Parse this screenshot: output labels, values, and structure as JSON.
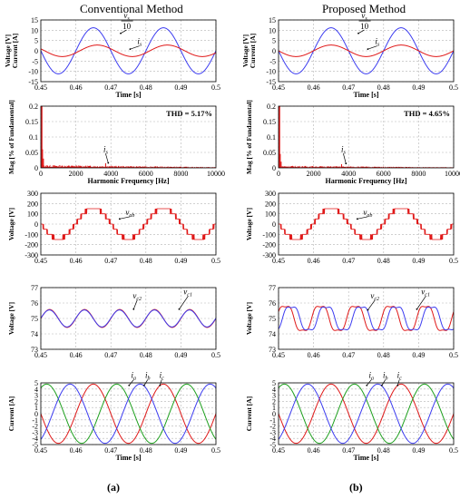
{
  "figure": {
    "columns": [
      {
        "title": "Conventional Method",
        "tag": "(a)"
      },
      {
        "title": "Proposed Method",
        "tag": "(b)"
      }
    ]
  },
  "colors": {
    "blue": "#3c3cf0",
    "red": "#e01818",
    "grid": "#b4b4b4"
  },
  "chart_data": [
    {
      "id": "a1",
      "type": "line",
      "column": 0,
      "row": 0,
      "ylabel": "Voltage [V]\nCurrent [A]",
      "xlabel": "Time [s]",
      "xlim": [
        0.45,
        0.5
      ],
      "ylim": [
        -15,
        15
      ],
      "xticks": [
        0.45,
        0.46,
        0.47,
        0.48,
        0.49,
        0.5
      ],
      "yticks": [
        -15,
        -10,
        -5,
        0,
        5,
        10,
        15
      ],
      "series": [
        {
          "color": "blue",
          "kind": "sine",
          "amplitude": 11.2,
          "frequency": 50,
          "phase_deg": 0
        },
        {
          "color": "red",
          "kind": "sine",
          "amplitude": 2.8,
          "frequency": 50,
          "phase_deg": -20
        }
      ],
      "annotations": [
        {
          "text_num": "v",
          "sub_num": "s",
          "text_den": "10",
          "kind": "fraction",
          "x": 0.4745,
          "y": 11.0,
          "ax": 0.4728,
          "ay": 8.5
        },
        {
          "text": "i",
          "sub": "s",
          "x": 0.4782,
          "y": 3.3,
          "ax": 0.4755,
          "ay": 0.8
        }
      ]
    },
    {
      "id": "a2",
      "type": "bar",
      "column": 0,
      "row": 1,
      "ylabel": "Mag [% of Fundamental]",
      "xlabel": "Harmonic Frequency [Hz]",
      "xlim": [
        0,
        10000
      ],
      "ylim": [
        0,
        0.2
      ],
      "xticks": [
        0,
        2000,
        4000,
        6000,
        8000,
        10000
      ],
      "yticks": [
        0,
        0.05,
        0.1,
        0.15,
        0.2
      ],
      "xtick_labels": [
        "0",
        "2000",
        "4000",
        "6000",
        "8000",
        "10000"
      ],
      "ytick_labels": [
        "0",
        "0.05",
        "0.1",
        "0.15",
        "0.2"
      ],
      "thd_label": "THD = 5.17%",
      "spectrum": {
        "fundamental": 0.2,
        "noise": 0.008,
        "peaks": [
          [
            100,
            0.06
          ],
          [
            150,
            0.03
          ],
          [
            3700,
            0.015
          ]
        ]
      },
      "annotations": [
        {
          "text": "i",
          "sub": "s",
          "x": 3700,
          "y": 0.052,
          "ax": 3850,
          "ay": 0.016
        }
      ]
    },
    {
      "id": "a3",
      "type": "line",
      "column": 0,
      "row": 2,
      "ylabel": "Voltage [V]",
      "xlabel": "",
      "xlim": [
        0.45,
        0.5
      ],
      "ylim": [
        -300,
        300
      ],
      "xticks": [
        0.45,
        0.46,
        0.47,
        0.48,
        0.49,
        0.5
      ],
      "yticks": [
        -300,
        -200,
        -100,
        0,
        100,
        200,
        300
      ],
      "series": [
        {
          "color": "red",
          "kind": "multilevel",
          "amplitude": 150,
          "frequency": 50,
          "levels": 3
        }
      ],
      "annotations": [
        {
          "text": "v",
          "sub": "ab",
          "x": 0.4755,
          "y": 90,
          "ax": 0.4725,
          "ay": 50
        }
      ]
    },
    {
      "id": "a4",
      "type": "line",
      "column": 0,
      "row": 3,
      "ylabel": "Voltage [V]",
      "xlabel": "",
      "xlim": [
        0.45,
        0.5
      ],
      "ylim": [
        73,
        77
      ],
      "xticks": [
        0.45,
        0.46,
        0.47,
        0.48,
        0.49,
        0.5
      ],
      "yticks": [
        73,
        74,
        75,
        76,
        77
      ],
      "series": [
        {
          "color": "red",
          "kind": "sine",
          "offset": 75,
          "amplitude": 0.58,
          "frequency": 100,
          "phase_deg": 0
        },
        {
          "color": "blue",
          "kind": "sine",
          "offset": 75,
          "amplitude": 0.55,
          "frequency": 100,
          "phase_deg": 2
        }
      ],
      "annotations": [
        {
          "text": "v",
          "sub": "c2",
          "x": 0.4775,
          "y": 76.3,
          "ax": 0.4765,
          "ay": 75.6
        },
        {
          "text": "v",
          "sub": "c1",
          "x": 0.492,
          "y": 76.55,
          "ax": 0.4895,
          "ay": 75.6
        }
      ]
    },
    {
      "id": "a5",
      "type": "line",
      "column": 0,
      "row": 4,
      "ylabel": "Current [A]",
      "xlabel": "Time [s]",
      "xlim": [
        0.45,
        0.5
      ],
      "ylim": [
        -5,
        5
      ],
      "xticks": [
        0.45,
        0.46,
        0.47,
        0.48,
        0.49,
        0.5
      ],
      "yticks": [
        -5,
        -4,
        -3,
        -2,
        -1,
        0,
        1,
        2,
        3,
        4,
        5
      ],
      "series": [
        {
          "color": "red",
          "kind": "sine",
          "amplitude": 4.8,
          "frequency": 50,
          "phase_deg": 0
        },
        {
          "color": "green",
          "kind": "sine",
          "amplitude": 4.8,
          "frequency": 50,
          "phase_deg": -120
        },
        {
          "color": "blue",
          "kind": "sine",
          "amplitude": 4.8,
          "frequency": 50,
          "phase_deg": 120
        }
      ],
      "annotations": [
        {
          "text": "i",
          "sub": "a",
          "x": 0.4765,
          "y": 5.8,
          "ax": 0.4752,
          "ay": 4.6
        },
        {
          "text": "i",
          "sub": "b",
          "x": 0.4805,
          "y": 5.8,
          "ax": 0.4795,
          "ay": 4.6
        },
        {
          "text": "i",
          "sub": "c",
          "x": 0.4845,
          "y": 5.8,
          "ax": 0.484,
          "ay": 4.6
        }
      ]
    },
    {
      "id": "b1",
      "type": "line",
      "column": 1,
      "row": 0,
      "ylabel": "Voltage [V]\nCurrent [A]",
      "xlabel": "Time [s]",
      "xlim": [
        0.45,
        0.5
      ],
      "ylim": [
        -15,
        15
      ],
      "xticks": [
        0.45,
        0.46,
        0.47,
        0.48,
        0.49,
        0.5
      ],
      "yticks": [
        -15,
        -10,
        -5,
        0,
        5,
        10,
        15
      ],
      "series": [
        {
          "color": "blue",
          "kind": "sine",
          "amplitude": 11.2,
          "frequency": 50,
          "phase_deg": 0
        },
        {
          "color": "red",
          "kind": "sine",
          "amplitude": 2.8,
          "frequency": 50,
          "phase_deg": 0
        }
      ],
      "annotations": [
        {
          "text_num": "v",
          "sub_num": "s",
          "text_den": "10",
          "kind": "fraction",
          "x": 0.4745,
          "y": 11.0,
          "ax": 0.4728,
          "ay": 8.5
        },
        {
          "text": "i",
          "sub": "s",
          "x": 0.4782,
          "y": 3.3,
          "ax": 0.4755,
          "ay": 0.8
        }
      ]
    },
    {
      "id": "b2",
      "type": "bar",
      "column": 1,
      "row": 1,
      "ylabel": "Mag [% of Fundamental]",
      "xlabel": "Harmonic Frequency [Hz]",
      "xlim": [
        0,
        10000
      ],
      "ylim": [
        0,
        0.2
      ],
      "xticks": [
        0,
        2000,
        4000,
        6000,
        8000,
        10000
      ],
      "yticks": [
        0,
        0.05,
        0.1,
        0.15,
        0.2
      ],
      "xtick_labels": [
        "0",
        "2000",
        "4000",
        "6000",
        "8000",
        "10000"
      ],
      "ytick_labels": [
        "0",
        "0.05",
        "0.1",
        "0.15",
        "0.2"
      ],
      "thd_label": "THD = 4.65%",
      "spectrum": {
        "fundamental": 0.2,
        "noise": 0.006,
        "peaks": [
          [
            100,
            0.045
          ],
          [
            150,
            0.02
          ],
          [
            3600,
            0.012
          ]
        ]
      },
      "annotations": [
        {
          "text": "i",
          "sub": "s",
          "x": 3700,
          "y": 0.052,
          "ax": 3850,
          "ay": 0.014
        }
      ]
    },
    {
      "id": "b3",
      "type": "line",
      "column": 1,
      "row": 2,
      "ylabel": "Voltage [V]",
      "xlabel": "",
      "xlim": [
        0.45,
        0.5
      ],
      "ylim": [
        -300,
        300
      ],
      "xticks": [
        0.45,
        0.46,
        0.47,
        0.48,
        0.49,
        0.5
      ],
      "yticks": [
        -300,
        -200,
        -100,
        0,
        100,
        200,
        300
      ],
      "series": [
        {
          "color": "red",
          "kind": "multilevel",
          "amplitude": 150,
          "frequency": 50,
          "levels": 3
        }
      ],
      "annotations": [
        {
          "text": "v",
          "sub": "ab",
          "x": 0.4755,
          "y": 90,
          "ax": 0.4725,
          "ay": 50
        }
      ]
    },
    {
      "id": "b4",
      "type": "line",
      "column": 1,
      "row": 3,
      "ylabel": "Voltage [V]",
      "xlabel": "",
      "xlim": [
        0.45,
        0.5
      ],
      "ylim": [
        73,
        77
      ],
      "xticks": [
        0.45,
        0.46,
        0.47,
        0.48,
        0.49,
        0.5
      ],
      "yticks": [
        73,
        74,
        75,
        76,
        77
      ],
      "series": [
        {
          "color": "red",
          "kind": "sine",
          "offset": 75,
          "amplitude": 0.9,
          "frequency": 100,
          "phase_deg": 20,
          "harmonic": 0.15
        },
        {
          "color": "blue",
          "kind": "sine",
          "offset": 75,
          "amplitude": 0.85,
          "frequency": 100,
          "phase_deg": -40,
          "harmonic": 0.15
        }
      ],
      "annotations": [
        {
          "text": "v",
          "sub": "c2",
          "x": 0.4775,
          "y": 76.3,
          "ax": 0.4755,
          "ay": 75.55
        },
        {
          "text": "v",
          "sub": "c1",
          "x": 0.492,
          "y": 76.55,
          "ax": 0.4895,
          "ay": 75.6
        }
      ]
    },
    {
      "id": "b5",
      "type": "line",
      "column": 1,
      "row": 4,
      "ylabel": "Current [A]",
      "xlabel": "Time [s]",
      "xlim": [
        0.45,
        0.5
      ],
      "ylim": [
        -5,
        5
      ],
      "xticks": [
        0.45,
        0.46,
        0.47,
        0.48,
        0.49,
        0.5
      ],
      "yticks": [
        -5,
        -4,
        -3,
        -2,
        -1,
        0,
        1,
        2,
        3,
        4,
        5
      ],
      "series": [
        {
          "color": "red",
          "kind": "sine",
          "amplitude": 4.8,
          "frequency": 50,
          "phase_deg": 0
        },
        {
          "color": "green",
          "kind": "sine",
          "amplitude": 4.8,
          "frequency": 50,
          "phase_deg": -120
        },
        {
          "color": "blue",
          "kind": "sine",
          "amplitude": 4.8,
          "frequency": 50,
          "phase_deg": 120
        }
      ],
      "annotations": [
        {
          "text": "i",
          "sub": "a",
          "x": 0.4765,
          "y": 5.8,
          "ax": 0.4752,
          "ay": 4.6
        },
        {
          "text": "i",
          "sub": "b",
          "x": 0.4805,
          "y": 5.8,
          "ax": 0.4795,
          "ay": 4.6
        },
        {
          "text": "i",
          "sub": "c",
          "x": 0.4845,
          "y": 5.8,
          "ax": 0.484,
          "ay": 4.6
        }
      ]
    }
  ]
}
